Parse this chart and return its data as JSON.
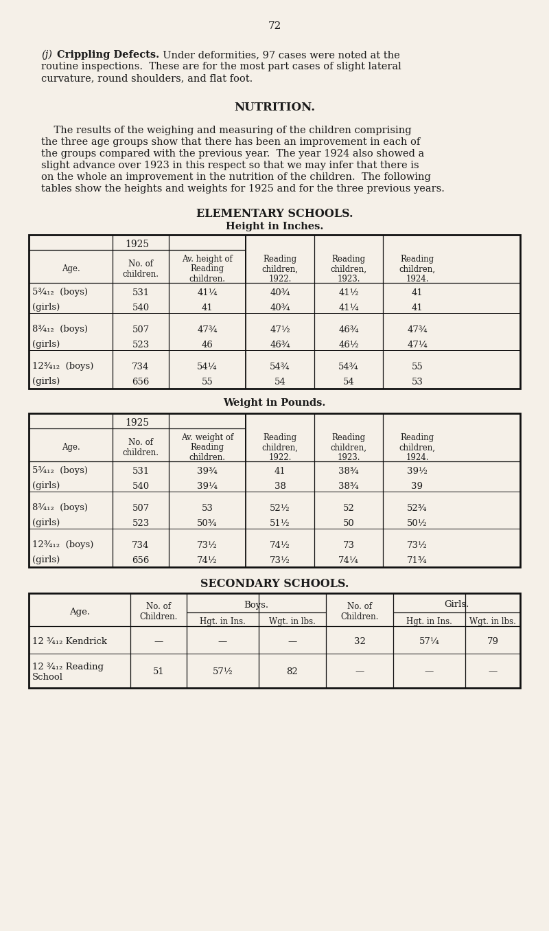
{
  "bg_color": "#f5f0e8",
  "text_color": "#1a1a1a",
  "page_number": "72",
  "section_j_bold": "Crippling Defects.",
  "section_j_italic": "(j)",
  "section_j_lines": [
    " Under deformities, 97 cases were noted at the",
    "routine inspections.  These are for the most part cases of slight lateral",
    "curvature, round shoulders, and flat foot."
  ],
  "nutrition_title": "NUTRITION.",
  "nutrition_text": [
    "    The results of the weighing and measuring of the children comprising",
    "the three age groups show that there has been an improvement in each of",
    "the groups compared with the previous year.  The year 1924 also showed a",
    "slight advance over 1923 in this respect so that we may infer that there is",
    "on the whole an improvement in the nutrition of the children.  The following",
    "tables show the heights and weights for 1925 and for the three previous years."
  ],
  "elem_title": "ELEMENTARY SCHOOLS.",
  "height_subtitle": "Height in Inches.",
  "weight_subtitle": "Weight in Pounds.",
  "secondary_title": "SECONDARY SCHOOLS.",
  "height_rows": [
    [
      "5¾₁₂  (boys)",
      "531",
      "41¼",
      "40¾",
      "41½",
      "41"
    ],
    [
      "(girls)",
      "540",
      "41",
      "40¾",
      "41¼",
      "41"
    ],
    [
      "8¾₁₂  (boys)",
      "507",
      "47¾",
      "47½",
      "46¾",
      "47¾"
    ],
    [
      "(girls)",
      "523",
      "46",
      "46¾",
      "46½",
      "47¼"
    ],
    [
      "12¾₁₂  (boys)",
      "734",
      "54¼",
      "54¾",
      "54¾",
      "55"
    ],
    [
      "(girls)",
      "656",
      "55",
      "54",
      "54",
      "53"
    ]
  ],
  "weight_rows": [
    [
      "5¾₁₂  (boys)",
      "531",
      "39¾",
      "41",
      "38¾",
      "39½"
    ],
    [
      "(girls)",
      "540",
      "39¼",
      "38",
      "38¾",
      "39"
    ],
    [
      "8¾₁₂  (boys)",
      "507",
      "53",
      "52½",
      "52",
      "52¾"
    ],
    [
      "(girls)",
      "523",
      "50¾",
      "51½",
      "50",
      "50½"
    ],
    [
      "12¾₁₂  (boys)",
      "734",
      "73½",
      "74½",
      "73",
      "73½"
    ],
    [
      "(girls)",
      "656",
      "74½",
      "73½",
      "74¼",
      "71¾"
    ]
  ],
  "sec_rows": [
    [
      "12 ¾₁₂ Kendrick",
      "—",
      "—",
      "—",
      "32",
      "57¼",
      "79"
    ],
    [
      "12 ¾₁₂ Reading\nSchool",
      "51",
      "57½",
      "82",
      "—",
      "—",
      "—"
    ]
  ],
  "height_col_headers": [
    "Age.",
    "No. of\nchildren.",
    "Av. height of\nReading\nchildren.",
    "Reading\nchildren,\n1922.",
    "Reading\nchildren,\n1923.",
    "Reading\nchildren,\n1924."
  ],
  "weight_col_headers": [
    "Age.",
    "No. of\nchildren.",
    "Av. weight of\nReading\nchildren.",
    "Reading\nchildren,\n1922.",
    "Reading\nchildren,\n1923.",
    "Reading\nchildren,\n1924."
  ]
}
